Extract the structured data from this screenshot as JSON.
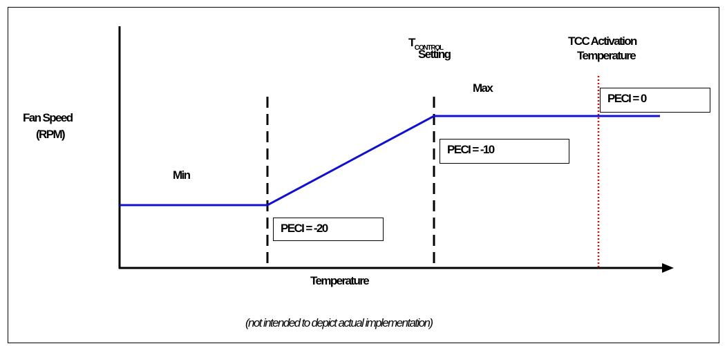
{
  "y_axis_label_line1": "Fan Speed",
  "y_axis_label_line2": "(RPM)",
  "x_axis_label": "Temperature",
  "region_min": "Min",
  "region_max": "Max",
  "tcontrol_prefix": "T",
  "tcontrol_sub": "CONTROL",
  "tcontrol_line2": "Setting",
  "toc_line1": "TCC Activation",
  "toc_line2": "Temperature",
  "peci_low": "PECI = -20",
  "peci_mid": "PECI = -10",
  "peci_high": "PECI = 0",
  "footnote": "(not intended to depict actual implementation)",
  "colors": {
    "curve": "#1010d0",
    "tcc_line": "#e00000",
    "axes": "#000000"
  }
}
